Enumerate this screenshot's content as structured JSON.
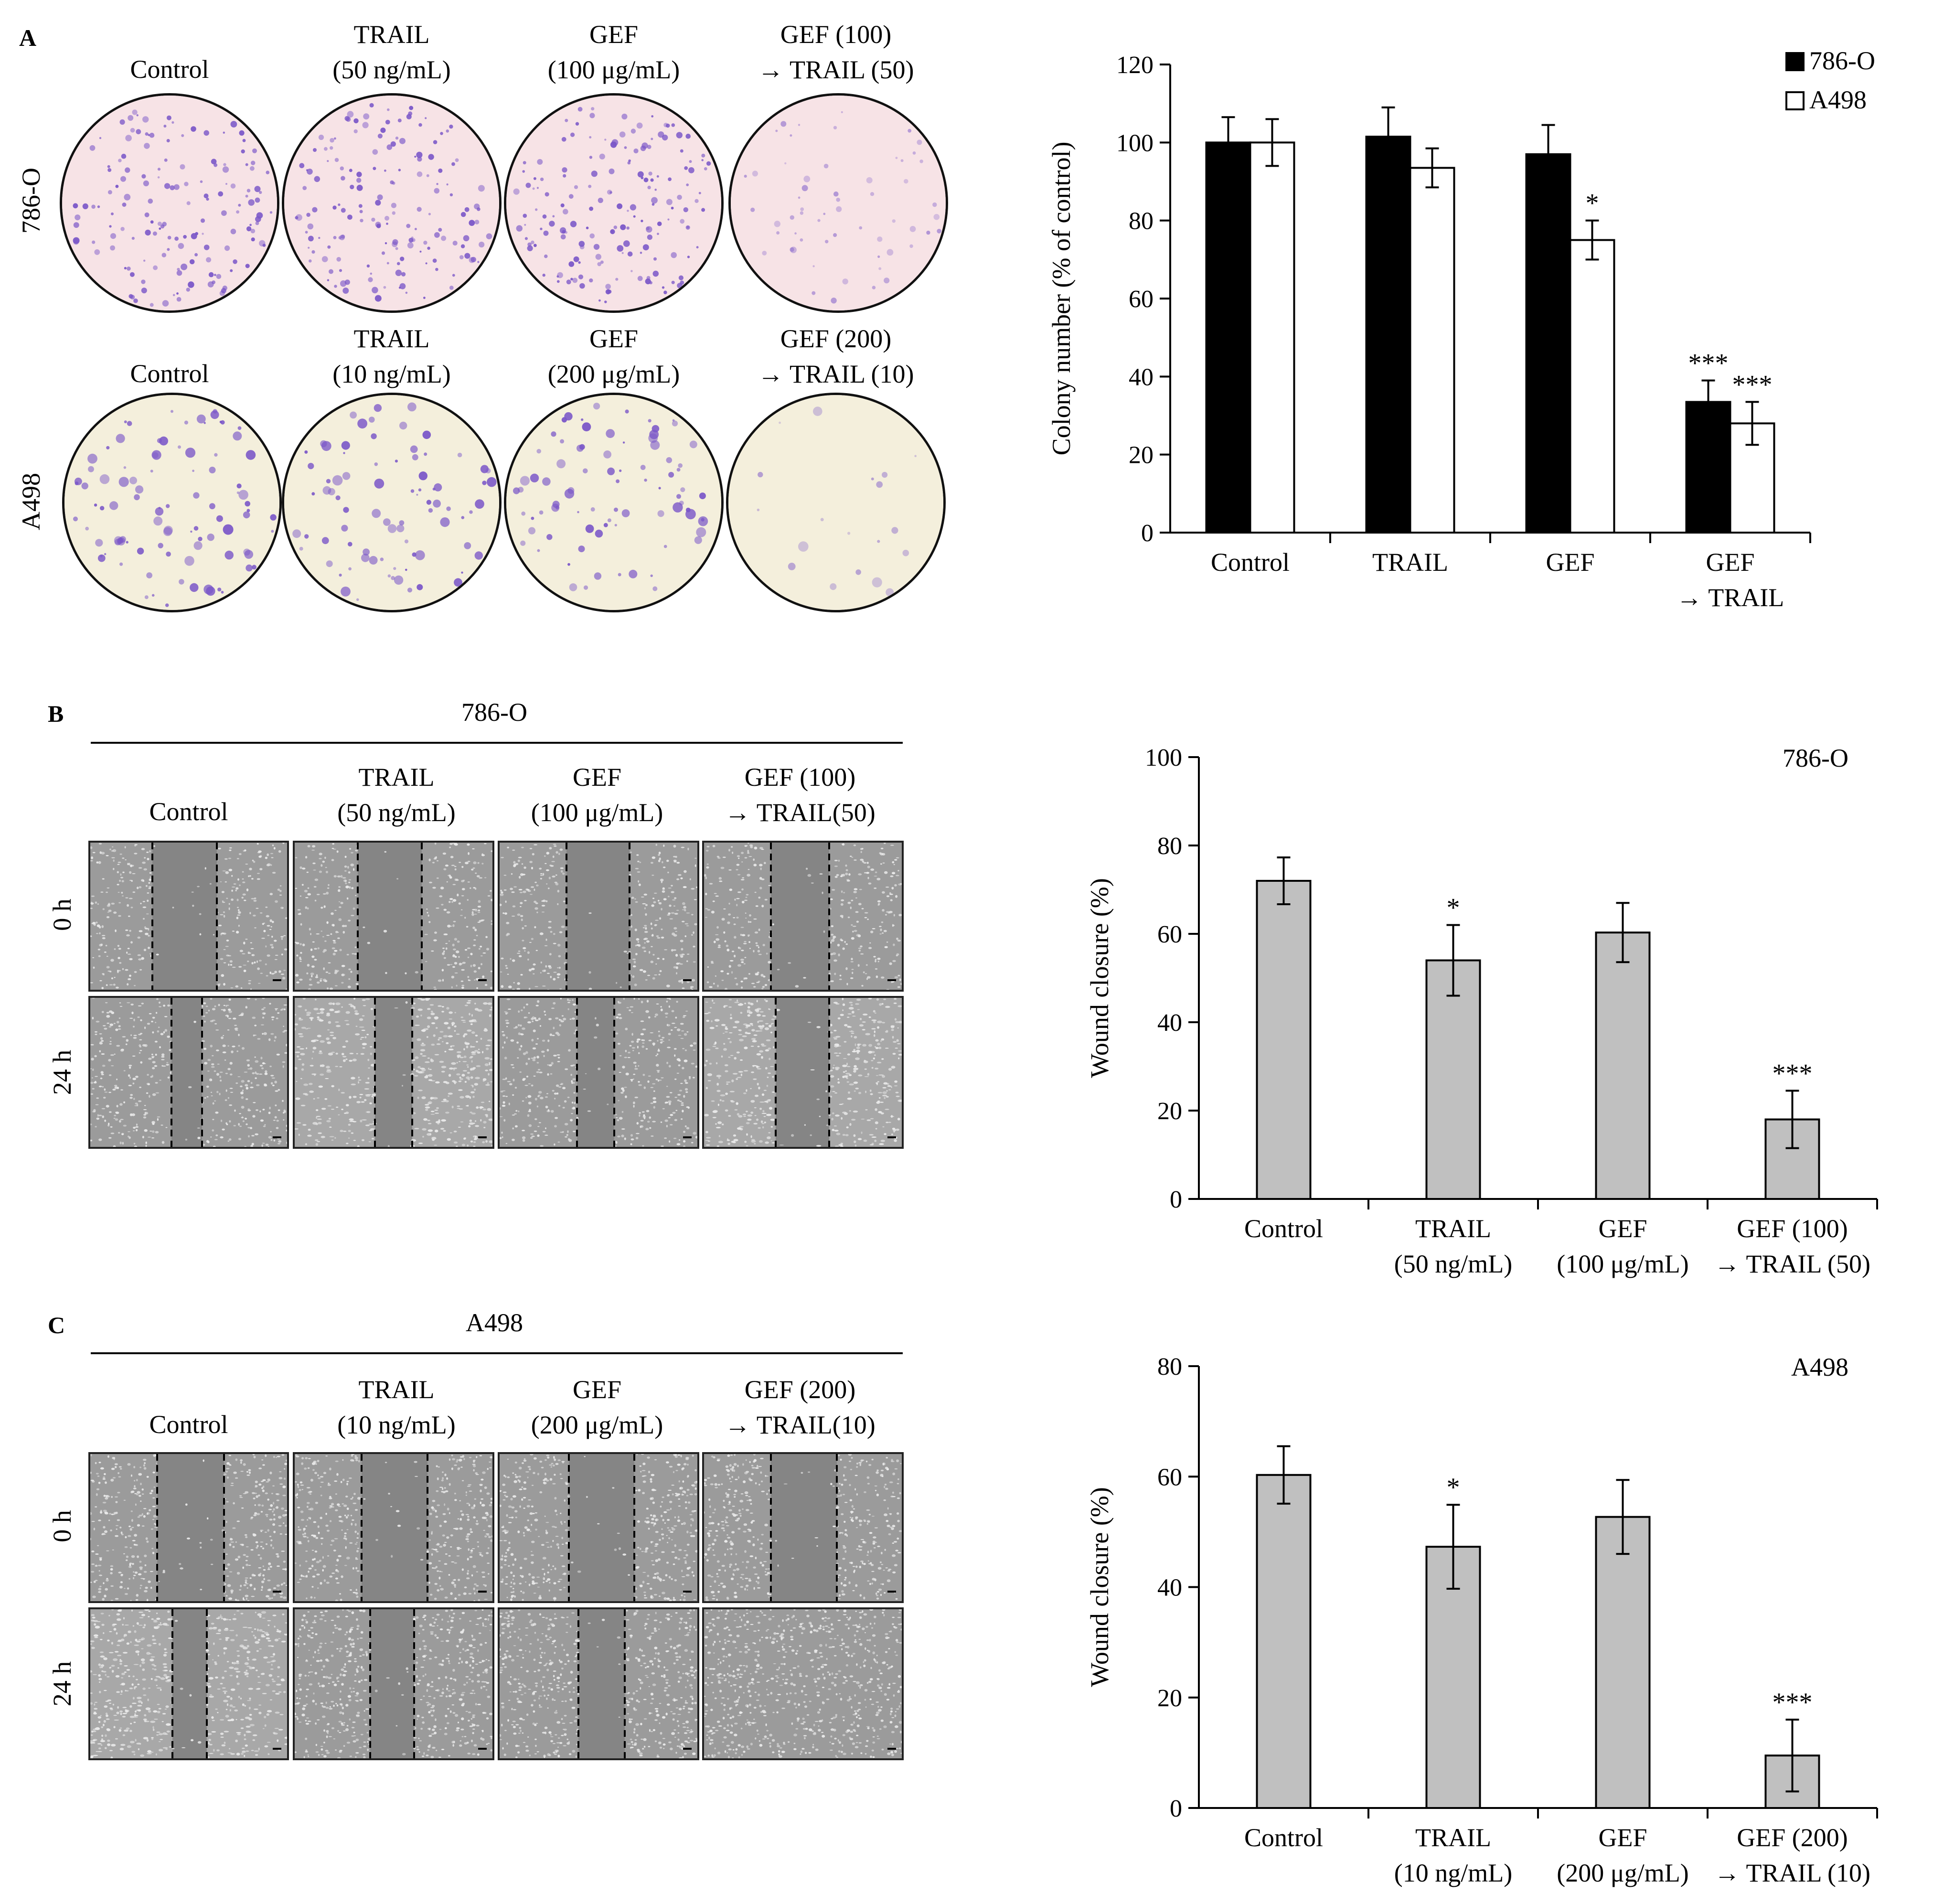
{
  "panels": {
    "A": {
      "letter": "A",
      "headers_row1": [
        [
          "Control"
        ],
        [
          "TRAIL",
          "(50 ng/mL)"
        ],
        [
          "GEF",
          "(100 μg/mL)"
        ],
        [
          "GEF (100)",
          "→ TRAIL (50)"
        ]
      ],
      "headers_row2": [
        [
          "Control"
        ],
        [
          "TRAIL",
          "(10 ng/mL)"
        ],
        [
          "GEF",
          "(200 μg/mL)"
        ],
        [
          "GEF (200)",
          "→ TRAIL (10)"
        ]
      ],
      "row_labels": [
        "786-O",
        "A498"
      ],
      "dish_colors": {
        "row1_bg": "#f7e3e6",
        "row2_bg": "#f4efdc",
        "colony": "#7a56c8"
      }
    },
    "B": {
      "letter": "B",
      "cell_line": "786-O",
      "headers": [
        [
          "Control"
        ],
        [
          "TRAIL",
          "(50 ng/mL)"
        ],
        [
          "GEF",
          "(100 μg/mL)"
        ],
        [
          "GEF (100)",
          "→ TRAIL(50)"
        ]
      ],
      "row_labels": [
        "0 h",
        "24 h"
      ]
    },
    "C": {
      "letter": "C",
      "cell_line": "A498",
      "headers": [
        [
          "Control"
        ],
        [
          "TRAIL",
          "(10 ng/mL)"
        ],
        [
          "GEF",
          "(200 μg/mL)"
        ],
        [
          "GEF (200)",
          "→ TRAIL(10)"
        ]
      ],
      "row_labels": [
        "0 h",
        "24 h"
      ]
    }
  },
  "chart_data": [
    {
      "type": "bar",
      "ylabel": "Colony number (% of control)",
      "ylim": [
        0,
        120
      ],
      "yticks": [
        0,
        20,
        40,
        60,
        80,
        100,
        120
      ],
      "categories": [
        [
          "Control"
        ],
        [
          "TRAIL"
        ],
        [
          "GEF"
        ],
        [
          "GEF",
          "→ TRAIL"
        ]
      ],
      "legend_position": "top-right",
      "series": [
        {
          "name": "786-O",
          "color": "#000000",
          "values": [
            100,
            101.5,
            97,
            33.5
          ],
          "errors": [
            6.5,
            7.5,
            7.5,
            5.5
          ],
          "significance": [
            "",
            "",
            "",
            "***"
          ]
        },
        {
          "name": "A498",
          "color": "#ffffff",
          "values": [
            100,
            93.5,
            75,
            28
          ],
          "errors": [
            6,
            5,
            5,
            5.5
          ],
          "significance": [
            "",
            "",
            "*",
            "***"
          ]
        }
      ]
    },
    {
      "type": "bar",
      "ylabel": "Wound closure (%)",
      "annotation": "786-O",
      "ylim": [
        0,
        100
      ],
      "yticks": [
        0,
        20,
        40,
        60,
        80,
        100
      ],
      "categories": [
        [
          "Control"
        ],
        [
          "TRAIL",
          "(50 ng/mL)"
        ],
        [
          "GEF",
          "(100 μg/mL)"
        ],
        [
          "GEF (100)",
          "→ TRAIL (50)"
        ]
      ],
      "series": [
        {
          "color": "#c0c0c0",
          "values": [
            72,
            54,
            60.3,
            18
          ],
          "errors": [
            5.3,
            8,
            6.7,
            6.5
          ],
          "significance": [
            "",
            "*",
            "",
            "***"
          ]
        }
      ]
    },
    {
      "type": "bar",
      "ylabel": "Wound closure (%)",
      "annotation": "A498",
      "ylim": [
        0,
        80
      ],
      "yticks": [
        0,
        20,
        40,
        60,
        80
      ],
      "categories": [
        [
          "Control"
        ],
        [
          "TRAIL",
          "(10 ng/mL)"
        ],
        [
          "GEF",
          "(200 μg/mL)"
        ],
        [
          "GEF (200)",
          "→ TRAIL (10)"
        ]
      ],
      "series": [
        {
          "color": "#c0c0c0",
          "values": [
            60.3,
            47.3,
            52.7,
            9.5
          ],
          "errors": [
            5.2,
            7.6,
            6.7,
            6.5
          ],
          "significance": [
            "",
            "*",
            "",
            "***"
          ]
        }
      ]
    }
  ]
}
